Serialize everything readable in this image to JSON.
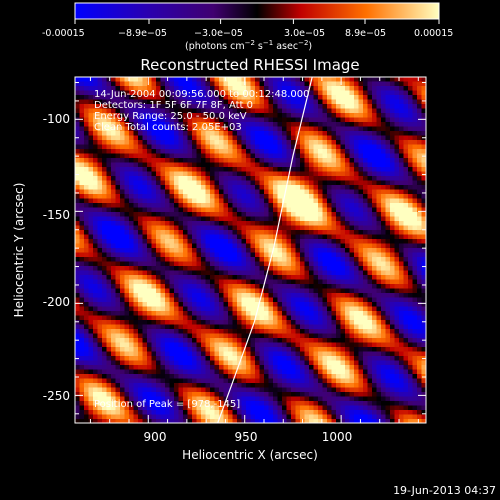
{
  "colorbar": {
    "tick_labels": [
      "-0.00015",
      "−8.9e−05",
      "−3.0e−05",
      "3.0e−05",
      "8.9e−05",
      "0.00015"
    ],
    "min": -0.00015,
    "max": 0.00015,
    "unit_prefix": "(photons cm",
    "unit_sup1": "−2",
    "unit_mid": " s",
    "unit_sup2": "−1",
    "unit_mid2": " asec",
    "unit_sup3": "−2",
    "unit_suffix": ")"
  },
  "chart_data": {
    "type": "heatmap",
    "title": "Reconstructed RHESSI Image",
    "xlabel": "Heliocentric X (arcsec)",
    "ylabel": "Heliocentric Y (arcsec)",
    "xlim": [
      862,
      1044
    ],
    "ylim": [
      -265,
      -77
    ],
    "x_ticks": [
      900,
      950,
      1000
    ],
    "y_ticks": [
      -100,
      -150,
      -200,
      -250
    ],
    "annotations": [
      "14-Jun-2004 00:09:56.000 to 00:12:48.000",
      "Detectors: 1F 5F 6F 7F 8F, Att 0",
      "Energy Range: 25.0 - 50.0 keV",
      "Clean  Total counts: 2.05E+03"
    ],
    "peak_label": "Position of Peak = [978,-145]",
    "peak": [
      978,
      -145
    ],
    "limb_curve": [
      [
        985,
        -77
      ],
      [
        975,
        -120
      ],
      [
        965,
        -170
      ],
      [
        955,
        -210
      ],
      [
        943,
        -245
      ],
      [
        936,
        -265
      ]
    ],
    "colormap": [
      "#0000ff",
      "#3d0066",
      "#000000",
      "#c00000",
      "#ff8000",
      "#ffffa0"
    ]
  },
  "footer": {
    "timestamp": "19-Jun-2013 04:37"
  }
}
